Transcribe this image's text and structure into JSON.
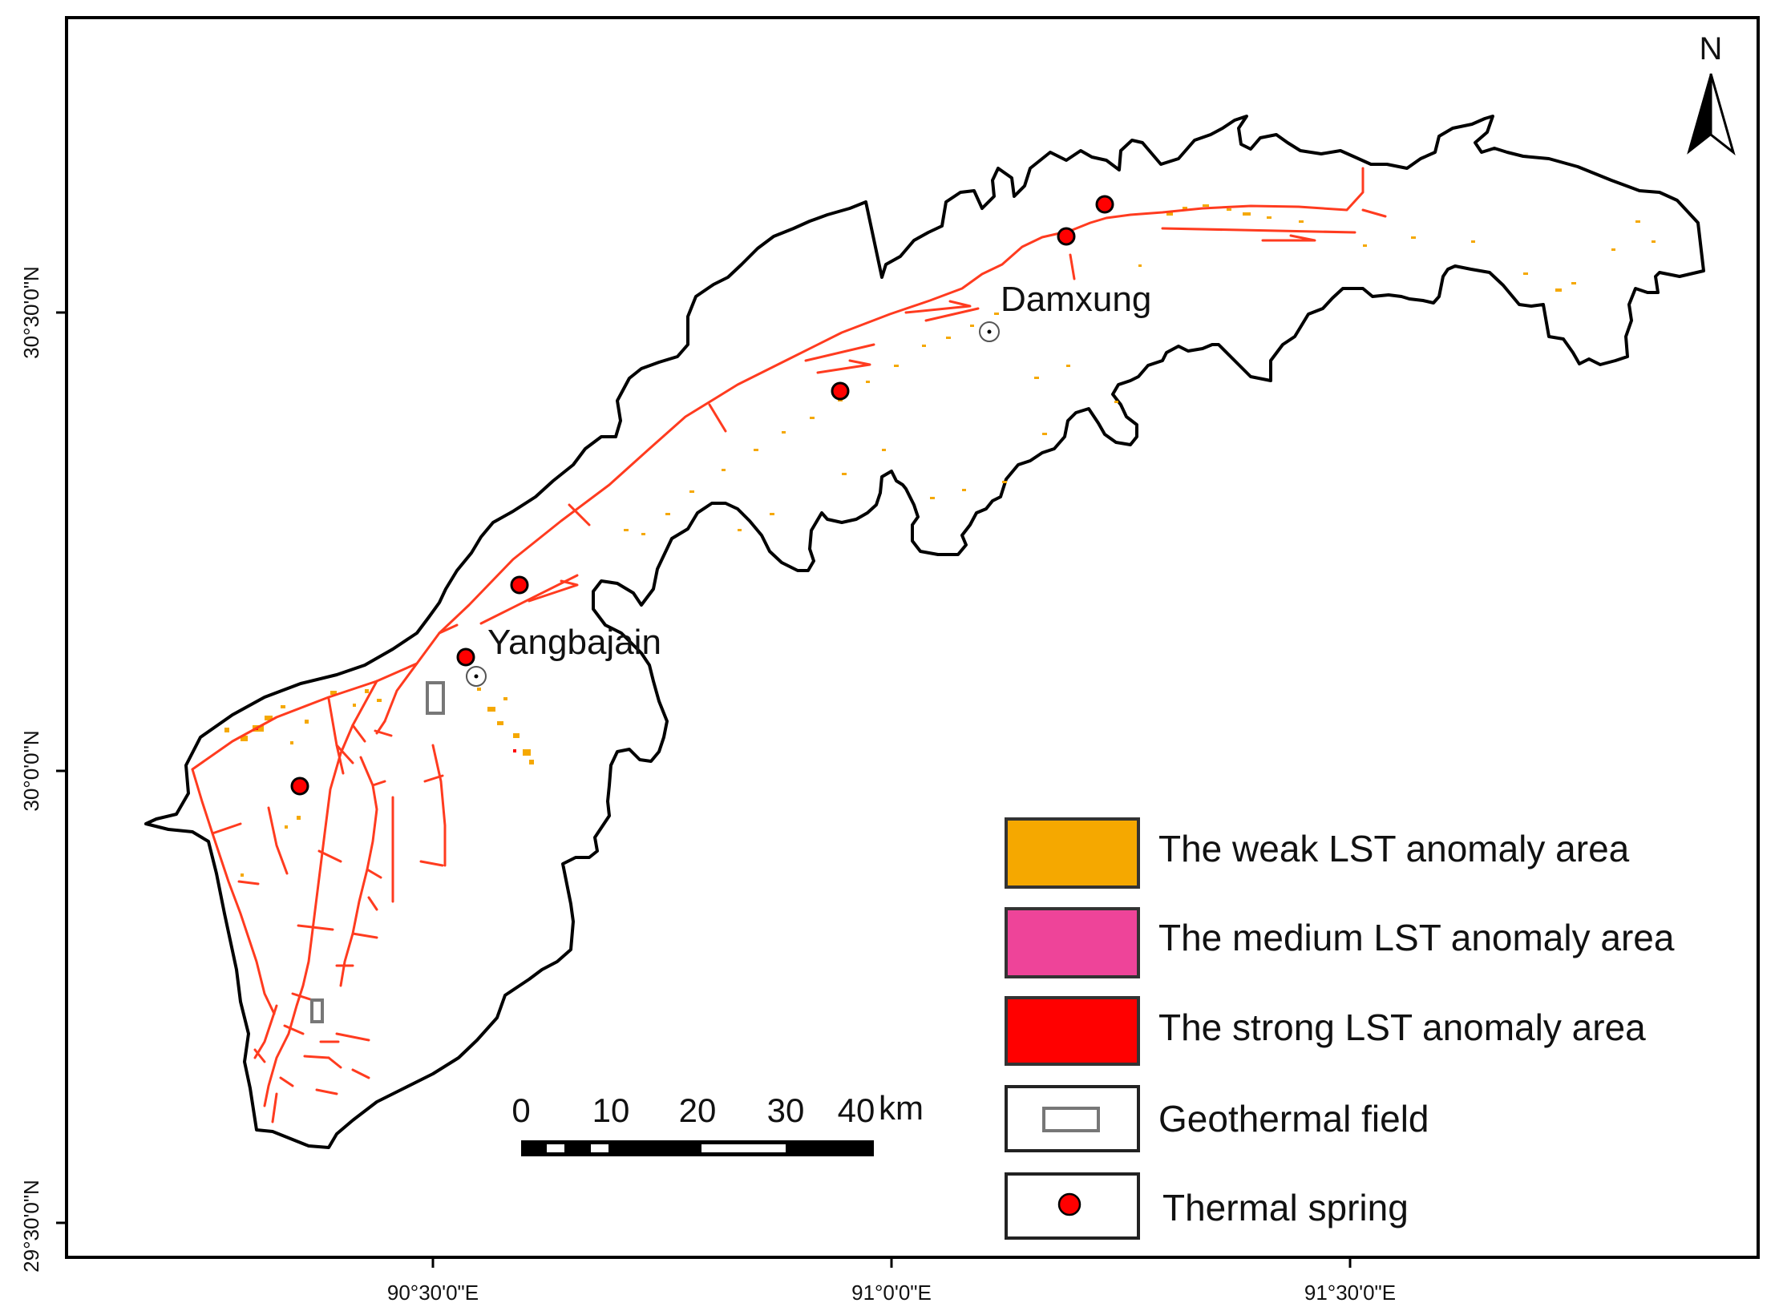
{
  "map": {
    "axes": {
      "x_ticks": [
        "90°30'0\"E",
        "91°0'0\"E",
        "91°30'0\"E"
      ],
      "y_ticks": [
        "30°30'0\"N",
        "30°0'0\"N",
        "29°30'0\"N"
      ]
    },
    "north_arrow": {
      "label": "N"
    },
    "places": [
      {
        "name": "Damxung"
      },
      {
        "name": "Yangbajain"
      }
    ],
    "scale_bar": {
      "ticks": [
        "0",
        "10",
        "20",
        "30",
        "40"
      ],
      "unit": "km"
    },
    "legend": [
      {
        "label": "The weak LST anomaly area",
        "color": "#F5A800",
        "symbol": "fill"
      },
      {
        "label": "The medium LST anomaly area",
        "color": "#EE4499",
        "symbol": "fill"
      },
      {
        "label": "The strong LST anomaly area",
        "color": "#FF0000",
        "symbol": "fill"
      },
      {
        "label": "Geothermal field",
        "color": "#777777",
        "symbol": "rect-outline"
      },
      {
        "label": "Thermal spring",
        "color": "#FF0000",
        "symbol": "dot"
      }
    ],
    "colors": {
      "fault": "#FF3B1F",
      "boundary": "#000000",
      "spring": "#FF0000",
      "weak_anomaly": "#F5A800"
    }
  }
}
